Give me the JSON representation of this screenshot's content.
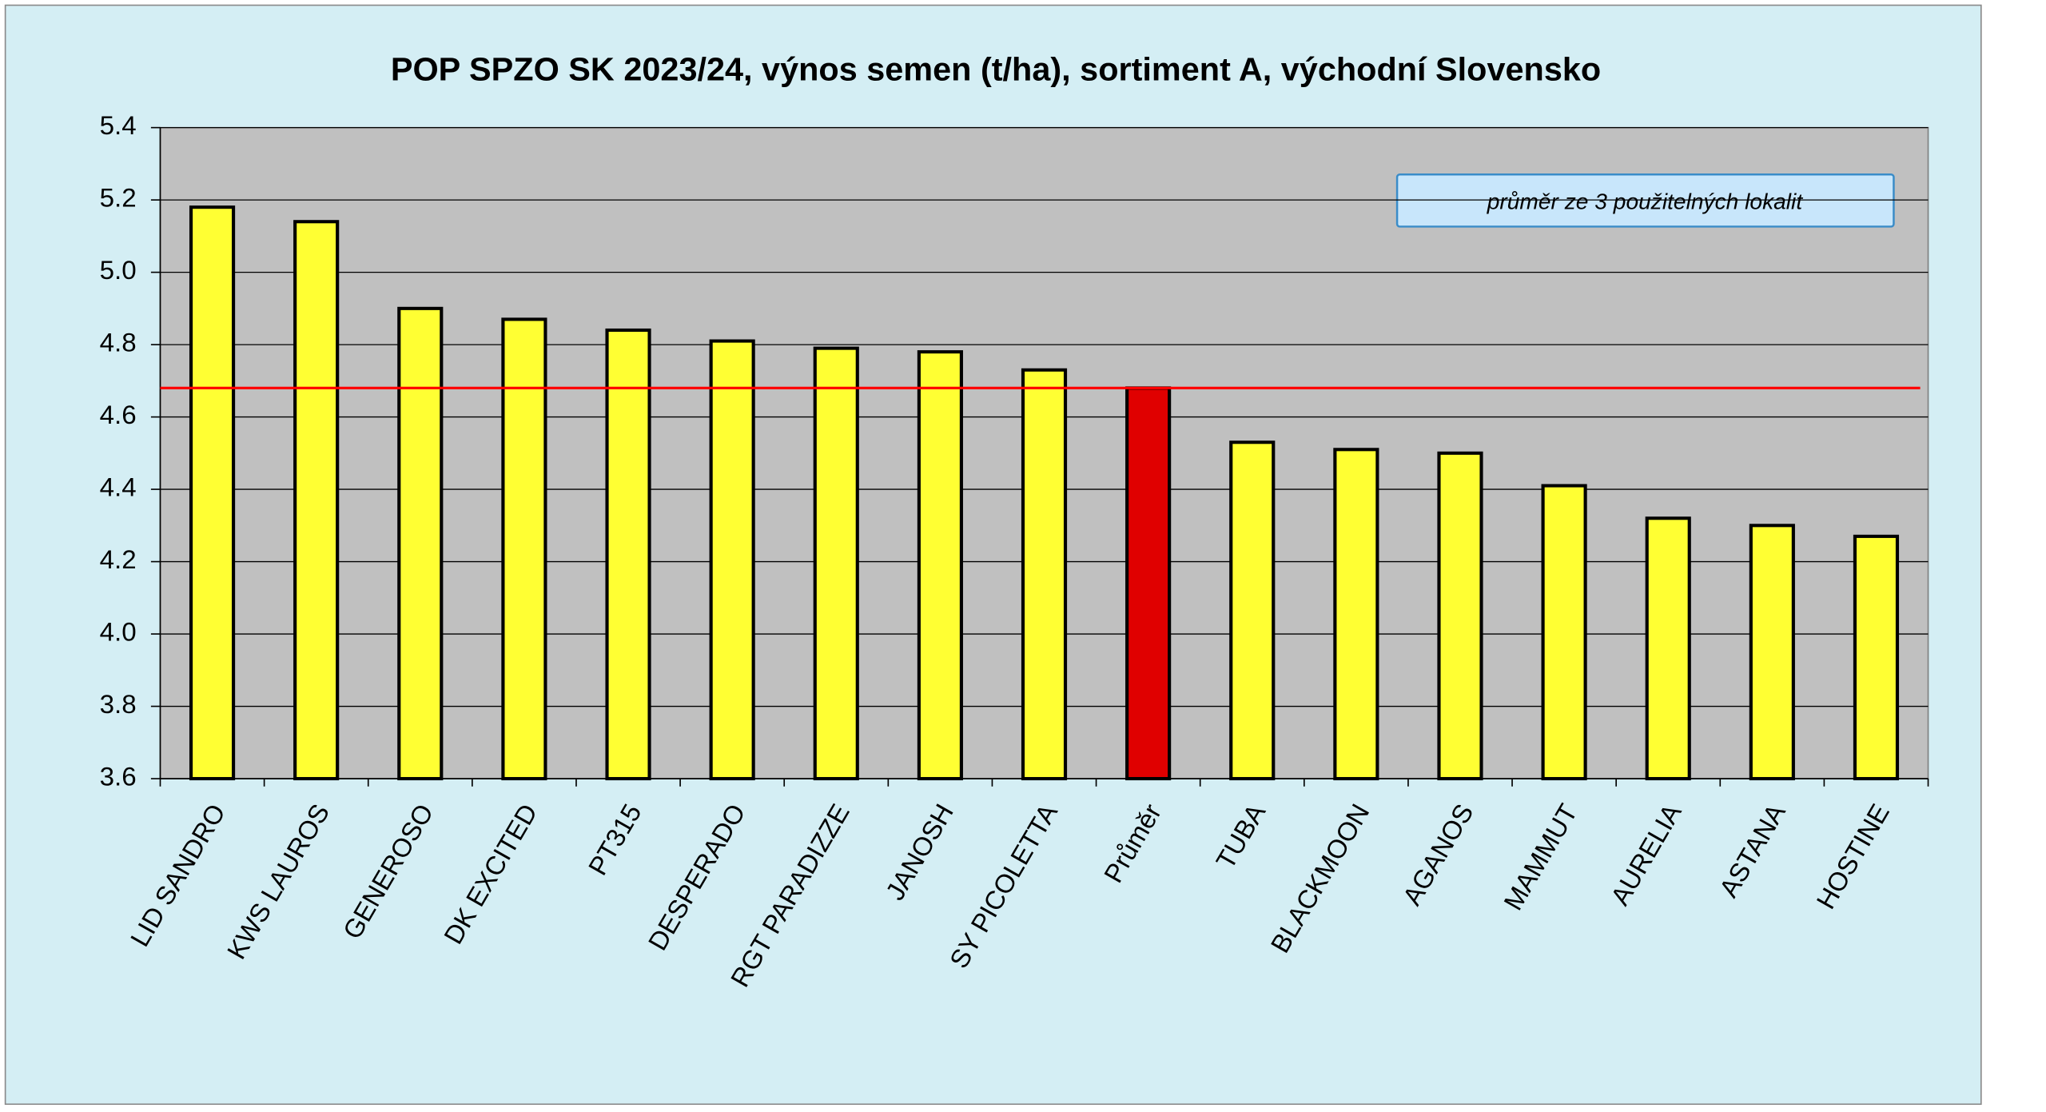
{
  "chart_data": {
    "type": "bar",
    "title": "POP SPZO SK 2023/24, výnos semen (t/ha), sortiment A, východní Slovensko",
    "annotation": "průměr ze 3 použitelných lokalit",
    "categories": [
      "LID SANDRO",
      "KWS LAUROS",
      "GENEROSO",
      "DK EXCITED",
      "PT315",
      "DESPERADO",
      "RGT PARADIZZE",
      "JANOSH",
      "SY PICOLETTA",
      "Průměr",
      "TUBA",
      "BLACKMOON",
      "AGANOS",
      "MAMMUT",
      "AURELIA",
      "ASTANA",
      "HOSTINE"
    ],
    "values": [
      5.18,
      5.14,
      4.9,
      4.87,
      4.84,
      4.81,
      4.79,
      4.78,
      4.73,
      4.68,
      4.53,
      4.51,
      4.5,
      4.41,
      4.32,
      4.3,
      4.27
    ],
    "colors": [
      "#ffff33",
      "#ffff33",
      "#ffff33",
      "#ffff33",
      "#ffff33",
      "#ffff33",
      "#ffff33",
      "#ffff33",
      "#ffff33",
      "#e00000",
      "#ffff33",
      "#ffff33",
      "#ffff33",
      "#ffff33",
      "#ffff33",
      "#ffff33",
      "#ffff33"
    ],
    "reference_line": 4.68,
    "reference_color": "#ff0000",
    "ylim": [
      3.6,
      5.4
    ],
    "yticks": [
      3.6,
      3.8,
      {
        "value": 4,
        "label": "4.0"
      },
      4.2,
      4.4,
      4.6,
      4.8,
      {
        "value": 5,
        "label": "5.0"
      },
      5.2,
      5.4
    ],
    "grid": true
  }
}
